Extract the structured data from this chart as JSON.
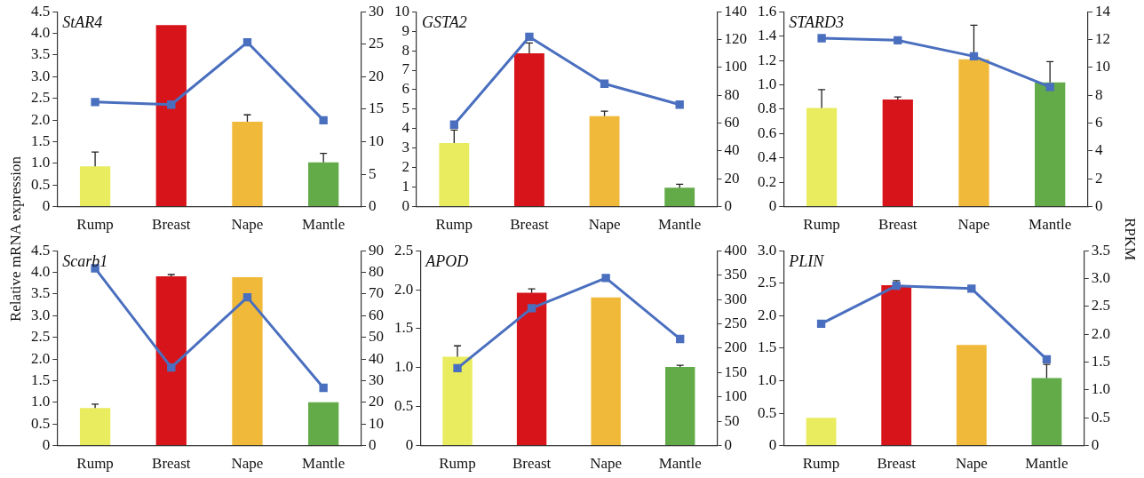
{
  "chart_data": [
    {
      "type": "bar",
      "title": "StAR4",
      "ylabel": "Relative mRNA expression",
      "categories": [
        "Rump",
        "Breast",
        "Nape",
        "Mantle"
      ],
      "ylim": [
        0,
        4.5
      ],
      "yticks": [
        0,
        0.5,
        {
          "value": 1,
          "label": "1.0"
        },
        1.5,
        {
          "value": 2,
          "label": "2.0"
        },
        2.5,
        {
          "value": 3,
          "label": "3.0"
        },
        3.5,
        {
          "value": 4,
          "label": "4.0"
        },
        4.5
      ],
      "y2lim": [
        0,
        30
      ],
      "y2ticks": [
        0,
        5,
        10,
        15,
        20,
        25,
        30
      ],
      "grid": false,
      "legend": false,
      "marker": "square",
      "series": [
        {
          "colors": [
            "#e8ec5e",
            "#d7141a",
            "#f0b93a",
            "#62ab48"
          ],
          "values": [
            0.93,
            4.19,
            1.96,
            1.02
          ],
          "errors": [
            [
              0.93,
              1.26
            ],
            null,
            [
              1.96,
              2.12
            ],
            [
              1.02,
              1.23
            ]
          ]
        },
        {
          "type": "line",
          "axis": "y2",
          "color": "#4a6fbf",
          "values": [
            16.1,
            15.7,
            25.3,
            13.3
          ]
        }
      ]
    },
    {
      "type": "bar",
      "title": "GSTA2",
      "categories": [
        "Rump",
        "Breast",
        "Nape",
        "Mantle"
      ],
      "ylim": [
        0,
        10
      ],
      "yticks": [
        0,
        1,
        2,
        3,
        4,
        5,
        6,
        7,
        8,
        9,
        10
      ],
      "y2lim": [
        0,
        140
      ],
      "y2ticks": [
        0,
        20,
        40,
        60,
        80,
        100,
        120,
        140
      ],
      "grid": false,
      "legend": false,
      "marker": "square",
      "series": [
        {
          "colors": [
            "#e8ec5e",
            "#d7141a",
            "#f0b93a",
            "#62ab48"
          ],
          "values": [
            3.26,
            7.87,
            4.64,
            0.97
          ],
          "errors": [
            [
              3.26,
              3.93
            ],
            [
              7.87,
              8.4
            ],
            [
              4.64,
              4.9
            ],
            [
              0.97,
              1.15
            ]
          ]
        },
        {
          "type": "line",
          "axis": "y2",
          "color": "#4a6fbf",
          "values": [
            58.9,
            122,
            88.3,
            73.3
          ]
        }
      ]
    },
    {
      "type": "bar",
      "title": "STARD3",
      "y2label": "RPKM",
      "categories": [
        "Rump",
        "Breast",
        "Nape",
        "Mantle"
      ],
      "ylim": [
        0,
        1.6
      ],
      "yticks": [
        0,
        0.2,
        0.4,
        0.6,
        0.8,
        {
          "value": 1,
          "label": "1.0"
        },
        1.2,
        1.4,
        1.6
      ],
      "y2lim": [
        0,
        14
      ],
      "y2ticks": [
        0,
        2,
        4,
        6,
        8,
        10,
        12,
        14
      ],
      "grid": false,
      "legend": false,
      "marker": "square",
      "series": [
        {
          "colors": [
            "#e8ec5e",
            "#d7141a",
            "#f0b93a",
            "#62ab48"
          ],
          "values": [
            0.81,
            0.88,
            1.21,
            1.02
          ],
          "errors": [
            [
              0.81,
              0.96
            ],
            [
              0.88,
              0.9
            ],
            [
              1.21,
              1.49
            ],
            [
              1.02,
              1.19
            ]
          ]
        },
        {
          "type": "line",
          "axis": "y2",
          "color": "#4a6fbf",
          "values": [
            12.1,
            11.95,
            10.8,
            8.6
          ]
        }
      ]
    },
    {
      "type": "bar",
      "title": "Scarb1",
      "categories": [
        "Rump",
        "Breast",
        "Nape",
        "Mantle"
      ],
      "ylim": [
        0,
        4.5
      ],
      "yticks": [
        0,
        0.5,
        {
          "value": 1,
          "label": "1.0"
        },
        1.5,
        {
          "value": 2,
          "label": "2.0"
        },
        2.5,
        {
          "value": 3,
          "label": "3.0"
        },
        3.5,
        {
          "value": 4,
          "label": "4.0"
        },
        4.5
      ],
      "y2lim": [
        0,
        90
      ],
      "y2ticks": [
        0,
        10,
        20,
        30,
        40,
        50,
        60,
        70,
        80,
        90
      ],
      "grid": false,
      "legend": false,
      "marker": "square",
      "series": [
        {
          "colors": [
            "#e8ec5e",
            "#d7141a",
            "#f0b93a",
            "#62ab48"
          ],
          "values": [
            0.87,
            3.91,
            3.89,
            1.0
          ],
          "errors": [
            [
              0.87,
              0.96
            ],
            [
              3.91,
              3.95
            ],
            null,
            null
          ]
        },
        {
          "type": "line",
          "axis": "y2",
          "color": "#4a6fbf",
          "values": [
            81.9,
            36.1,
            68.5,
            26.7
          ]
        }
      ]
    },
    {
      "type": "bar",
      "title": "APOD",
      "categories": [
        "Rump",
        "Breast",
        "Nape",
        "Mantle"
      ],
      "ylim": [
        0,
        2.5
      ],
      "yticks": [
        0,
        0.5,
        {
          "value": 1,
          "label": "1.0"
        },
        1.5,
        {
          "value": 2,
          "label": "2.0"
        },
        2.5
      ],
      "y2lim": [
        0,
        400
      ],
      "y2ticks": [
        0,
        50,
        100,
        150,
        200,
        250,
        300,
        350,
        400
      ],
      "grid": false,
      "legend": false,
      "marker": "square",
      "series": [
        {
          "colors": [
            "#e8ec5e",
            "#d7141a",
            "#f0b93a",
            "#62ab48"
          ],
          "values": [
            1.14,
            1.96,
            1.9,
            1.01
          ],
          "errors": [
            [
              1.14,
              1.28
            ],
            [
              1.96,
              2.01
            ],
            null,
            [
              1.01,
              1.03
            ]
          ]
        },
        {
          "type": "line",
          "axis": "y2",
          "color": "#4a6fbf",
          "values": [
            159,
            282,
            344,
            219
          ]
        }
      ]
    },
    {
      "type": "bar",
      "title": "PLIN",
      "categories": [
        "Rump",
        "Breast",
        "Nape",
        "Mantle"
      ],
      "ylim": [
        0,
        3
      ],
      "yticks": [
        0,
        0.5,
        {
          "value": 1,
          "label": "1.0"
        },
        1.5,
        {
          "value": 2,
          "label": "2.0"
        },
        2.5,
        {
          "value": 3,
          "label": "3.0"
        }
      ],
      "y2lim": [
        0,
        3.5
      ],
      "y2ticks": [
        0,
        0.5,
        {
          "value": 1,
          "label": "1.0"
        },
        1.5,
        {
          "value": 2,
          "label": "2.0"
        },
        2.5,
        {
          "value": 3,
          "label": "3.0"
        },
        3.5
      ],
      "grid": false,
      "legend": false,
      "marker": "square",
      "series": [
        {
          "colors": [
            "#e8ec5e",
            "#d7141a",
            "#f0b93a",
            "#62ab48"
          ],
          "values": [
            0.43,
            2.47,
            1.55,
            1.04
          ],
          "errors": [
            null,
            [
              2.47,
              2.54
            ],
            null,
            [
              1.04,
              1.25
            ]
          ]
        },
        {
          "type": "line",
          "axis": "y2",
          "color": "#4a6fbf",
          "values": [
            2.19,
            2.87,
            2.82,
            1.55
          ]
        }
      ]
    }
  ]
}
